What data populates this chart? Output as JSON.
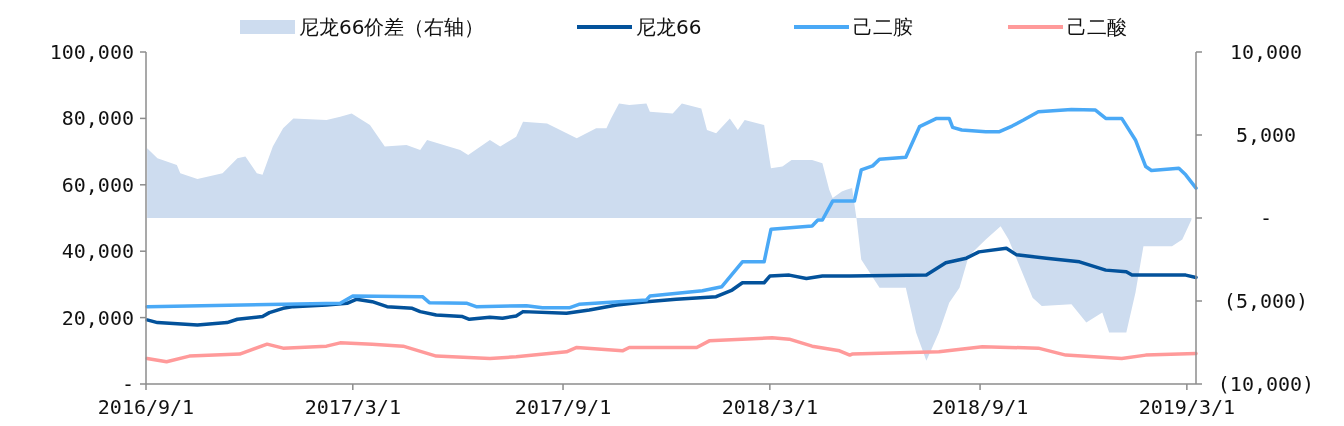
{
  "chart_data": {
    "type": "line",
    "legend": "top",
    "xlim": [
      "2016-09-01",
      "2019-03-09"
    ],
    "xticks": [
      {
        "value": "2016-09-01",
        "label": "2016/9/1"
      },
      {
        "value": "2017-03-01",
        "label": "2017/3/1"
      },
      {
        "value": "2017-09-01",
        "label": "2017/9/1"
      },
      {
        "value": "2018-03-01",
        "label": "2018/3/1"
      },
      {
        "value": "2018-09-01",
        "label": "2018/9/1"
      },
      {
        "value": "2019-03-01",
        "label": "2019/3/1"
      }
    ],
    "ylim": [
      0,
      100000
    ],
    "yticks": [
      {
        "value": 0,
        "label": "-"
      },
      {
        "value": 20000,
        "label": "20,000"
      },
      {
        "value": 40000,
        "label": "40,000"
      },
      {
        "value": 60000,
        "label": "60,000"
      },
      {
        "value": 80000,
        "label": "80,000"
      },
      {
        "value": 100000,
        "label": "100,000"
      }
    ],
    "y2lim": [
      -10000,
      10000
    ],
    "y2ticks": [
      {
        "value": -10000,
        "label": "(10,000)"
      },
      {
        "value": -5000,
        "label": "(5,000)"
      },
      {
        "value": 0,
        "label": "-"
      },
      {
        "value": 5000,
        "label": "5,000"
      },
      {
        "value": 10000,
        "label": "10,000"
      }
    ],
    "series": [
      {
        "name": "尼龙66价差（右轴）",
        "type": "area",
        "axis": "y2",
        "color": "#cddcef",
        "x": [
          "2016-09-02",
          "2016-09-11",
          "2016-09-28",
          "2016-10-01",
          "2016-10-16",
          "2016-11-07",
          "2016-11-20",
          "2016-11-27",
          "2016-12-07",
          "2016-12-12",
          "2016-12-21",
          "2016-12-30",
          "2017-01-08",
          "2017-02-06",
          "2017-02-18",
          "2017-02-28",
          "2017-03-16",
          "2017-03-29",
          "2017-04-17",
          "2017-04-29",
          "2017-05-05",
          "2017-06-03",
          "2017-06-10",
          "2017-06-29",
          "2017-07-08",
          "2017-07-22",
          "2017-07-28",
          "2017-08-18",
          "2017-09-13",
          "2017-09-30",
          "2017-10-09",
          "2017-10-13",
          "2017-10-20",
          "2017-10-29",
          "2017-11-13",
          "2017-11-16",
          "2017-12-06",
          "2017-12-14",
          "2017-12-31",
          "2018-01-05",
          "2018-01-13",
          "2018-01-25",
          "2018-02-01",
          "2018-02-07",
          "2018-02-24",
          "2018-03-02",
          "2018-03-12",
          "2018-03-20",
          "2018-04-07",
          "2018-04-16",
          "2018-04-22",
          "2018-04-25",
          "2018-05-03",
          "2018-05-07",
          "2018-05-12",
          "2018-05-16",
          "2018-05-20",
          "2018-06-05",
          "2018-06-28",
          "2018-07-07",
          "2018-07-16",
          "2018-07-27",
          "2018-08-05",
          "2018-08-14",
          "2018-08-22",
          "2018-09-06",
          "2018-09-19",
          "2018-09-26",
          "2018-10-08",
          "2018-10-17",
          "2018-10-25",
          "2018-11-20",
          "2018-12-03",
          "2018-12-17",
          "2018-12-23",
          "2019-01-07",
          "2019-01-15",
          "2019-01-22",
          "2019-02-16",
          "2019-02-25",
          "2019-03-05"
        ],
        "values": [
          4200,
          3600,
          3200,
          2700,
          2350,
          2700,
          3600,
          3700,
          2700,
          2600,
          4300,
          5400,
          6000,
          5900,
          6100,
          6300,
          5600,
          4300,
          4400,
          4100,
          4700,
          4100,
          3800,
          4700,
          4300,
          4900,
          5800,
          5700,
          4800,
          5400,
          5400,
          6000,
          6900,
          6800,
          6900,
          6400,
          6300,
          6900,
          6600,
          5300,
          5100,
          6000,
          5300,
          5900,
          5600,
          3000,
          3100,
          3500,
          3500,
          3300,
          1700,
          1200,
          1600,
          1700,
          1800,
          -100,
          -2500,
          -4200,
          -4200,
          -6900,
          -8600,
          -6900,
          -5100,
          -4200,
          -2300,
          -1300,
          -500,
          -1300,
          -3300,
          -4800,
          -5300,
          -5200,
          -6300,
          -5700,
          -6900,
          -6900,
          -4500,
          -1700,
          -1700,
          -1300,
          -100
        ]
      },
      {
        "name": "尼龙66",
        "color": "#03529b",
        "x": [
          "2016-09-02",
          "2016-09-11",
          "2016-10-16",
          "2016-11-11",
          "2016-11-20",
          "2016-12-12",
          "2016-12-18",
          "2016-12-30",
          "2017-01-08",
          "2017-02-06",
          "2017-02-24",
          "2017-03-04",
          "2017-03-18",
          "2017-03-31",
          "2017-04-22",
          "2017-04-29",
          "2017-05-13",
          "2017-06-05",
          "2017-06-11",
          "2017-06-29",
          "2017-07-10",
          "2017-07-22",
          "2017-07-28",
          "2017-09-04",
          "2017-09-24",
          "2017-10-18",
          "2017-11-13",
          "2017-12-09",
          "2018-01-13",
          "2018-01-27",
          "2018-02-05",
          "2018-02-24",
          "2018-03-01",
          "2018-03-18",
          "2018-04-02",
          "2018-04-16",
          "2018-05-10",
          "2018-07-16",
          "2018-08-02",
          "2018-08-20",
          "2018-08-31",
          "2018-09-24",
          "2018-10-03",
          "2018-10-29",
          "2018-11-27",
          "2018-12-20",
          "2019-01-07",
          "2019-01-12",
          "2019-02-28",
          "2019-03-09"
        ],
        "values": [
          19300,
          18500,
          17800,
          18500,
          19500,
          20300,
          21500,
          22800,
          23300,
          23800,
          24300,
          25500,
          24800,
          23300,
          22800,
          21800,
          20800,
          20300,
          19500,
          20100,
          19800,
          20500,
          21800,
          21300,
          22300,
          23800,
          24800,
          25500,
          26300,
          28300,
          30500,
          30500,
          32500,
          32800,
          31800,
          32500,
          32500,
          32800,
          36500,
          37900,
          39800,
          40900,
          38900,
          37900,
          36800,
          34300,
          33800,
          32800,
          32800,
          32100
        ]
      },
      {
        "name": "己二胺",
        "color": "#4aa9f6",
        "x": [
          "2016-09-02",
          "2017-02-18",
          "2017-03-01",
          "2017-05-01",
          "2017-05-07",
          "2017-06-09",
          "2017-06-17",
          "2017-07-31",
          "2017-08-14",
          "2017-09-07",
          "2017-09-15",
          "2017-11-13",
          "2017-11-16",
          "2018-01-01",
          "2018-01-18",
          "2018-02-05",
          "2018-02-24",
          "2018-03-02",
          "2018-04-07",
          "2018-04-12",
          "2018-04-16",
          "2018-04-25",
          "2018-05-14",
          "2018-05-20",
          "2018-05-30",
          "2018-06-05",
          "2018-06-28",
          "2018-07-10",
          "2018-07-25",
          "2018-08-05",
          "2018-08-08",
          "2018-08-16",
          "2018-09-06",
          "2018-09-18",
          "2018-09-29",
          "2018-10-09",
          "2018-10-22",
          "2018-11-20",
          "2018-12-11",
          "2018-12-20",
          "2019-01-03",
          "2019-01-15",
          "2019-01-24",
          "2019-01-29",
          "2019-02-22",
          "2019-02-28",
          "2019-03-09"
        ],
        "values": [
          23300,
          24300,
          26500,
          26300,
          24500,
          24300,
          23300,
          23600,
          23000,
          23000,
          24000,
          25300,
          26500,
          28100,
          29300,
          36800,
          36800,
          46600,
          47600,
          49400,
          49400,
          55100,
          55100,
          64500,
          65700,
          67700,
          68300,
          77500,
          80000,
          80000,
          77300,
          76500,
          76000,
          76000,
          77700,
          79500,
          82000,
          82700,
          82500,
          80000,
          80000,
          73500,
          65500,
          64300,
          65000,
          63000,
          59000
        ]
      },
      {
        "name": "己二酸",
        "color": "#ff9a9a",
        "x": [
          "2016-09-02",
          "2016-09-19",
          "2016-10-09",
          "2016-11-22",
          "2016-12-16",
          "2016-12-30",
          "2017-02-06",
          "2017-02-18",
          "2017-03-18",
          "2017-04-14",
          "2017-05-13",
          "2017-06-29",
          "2017-07-22",
          "2017-09-04",
          "2017-09-13",
          "2017-10-23",
          "2017-10-29",
          "2017-12-27",
          "2018-01-07",
          "2018-03-03",
          "2018-03-18",
          "2018-04-07",
          "2018-05-01",
          "2018-05-10",
          "2018-05-12",
          "2018-07-27",
          "2018-09-03",
          "2018-10-22",
          "2018-11-15",
          "2019-01-03",
          "2019-01-24",
          "2019-03-09"
        ],
        "values": [
          7700,
          6700,
          8400,
          9000,
          12000,
          10800,
          11400,
          12400,
          12000,
          11400,
          8400,
          7700,
          8200,
          9700,
          11000,
          10000,
          11000,
          11000,
          13000,
          13900,
          13500,
          11400,
          10000,
          8700,
          9000,
          9700,
          11200,
          10800,
          8700,
          7700,
          8700,
          9200
        ]
      }
    ]
  }
}
